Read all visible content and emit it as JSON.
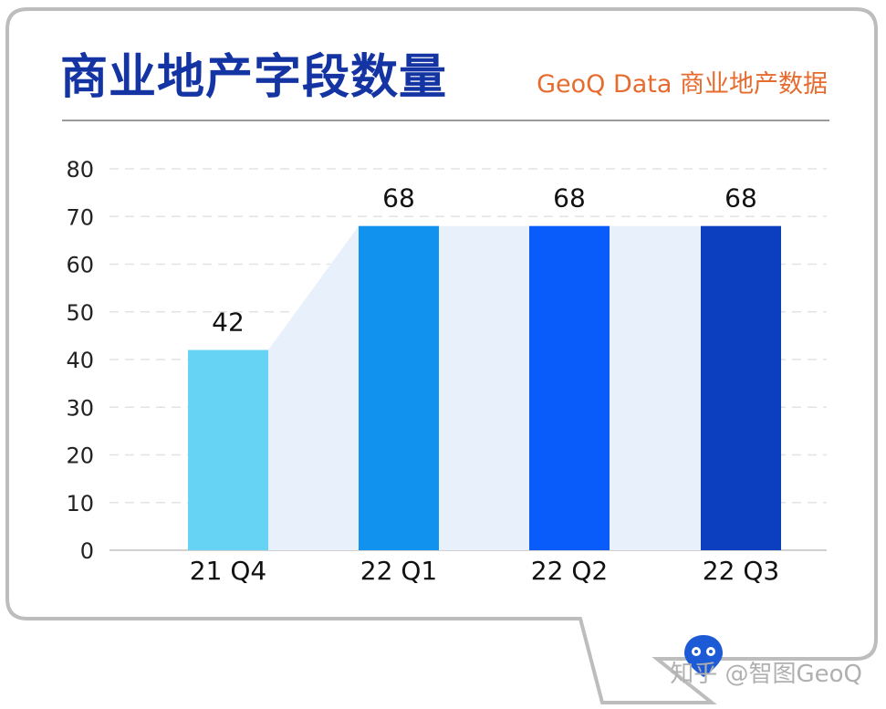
{
  "header": {
    "title": "商业地产字段数量",
    "subtitle": "GeoQ Data 商业地产数据"
  },
  "footer": {
    "credit": "知乎 @智图GeoQ"
  },
  "colors": {
    "title": "#1434a4",
    "subtitle": "#e56b2e",
    "band": "#e8f0fb",
    "bars": [
      "#66d3f5",
      "#1292ef",
      "#0a5cfa",
      "#0b3fc0"
    ]
  },
  "chart_data": {
    "type": "bar",
    "title": "商业地产字段数量",
    "categories": [
      "21 Q4",
      "22 Q1",
      "22 Q2",
      "22 Q3"
    ],
    "values": [
      42,
      68,
      68,
      68
    ],
    "data_labels": [
      "42",
      "68",
      "68",
      "68"
    ],
    "y_ticks": [
      "0",
      "10",
      "20",
      "30",
      "40",
      "50",
      "60",
      "70",
      "80"
    ],
    "ylim": [
      0,
      80
    ],
    "grid": true,
    "legend": "none"
  }
}
